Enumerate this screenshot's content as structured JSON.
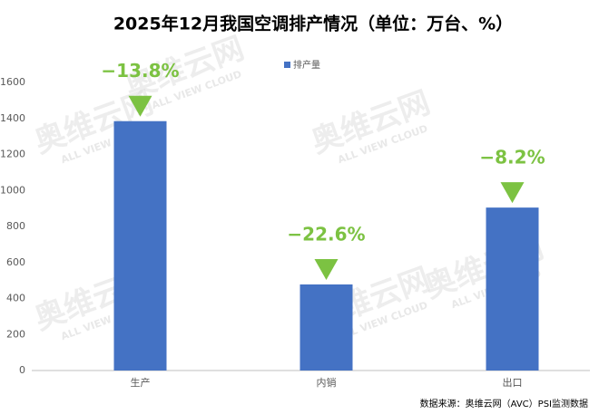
{
  "chart_data": {
    "type": "bar",
    "title": "2025年12月我国空调排产情况（单位：万台、%）",
    "categories": [
      "生产",
      "内销",
      "出口"
    ],
    "series": [
      {
        "name": "排产量",
        "color": "#4472c4",
        "values": [
          1385,
          478,
          905
        ]
      }
    ],
    "change_labels": [
      "−13.8%",
      "−22.6%",
      "−8.2%"
    ],
    "change_color": "#7cc242",
    "ylim": [
      0,
      1600
    ],
    "yticks": [
      0,
      200,
      400,
      600,
      800,
      1000,
      1200,
      1400,
      1600
    ],
    "grid": false,
    "source": "数据来源：奥维云网（AVC）PSI监测数据",
    "watermark": [
      "奥维云网",
      "ALL VIEW CLOUD"
    ]
  }
}
